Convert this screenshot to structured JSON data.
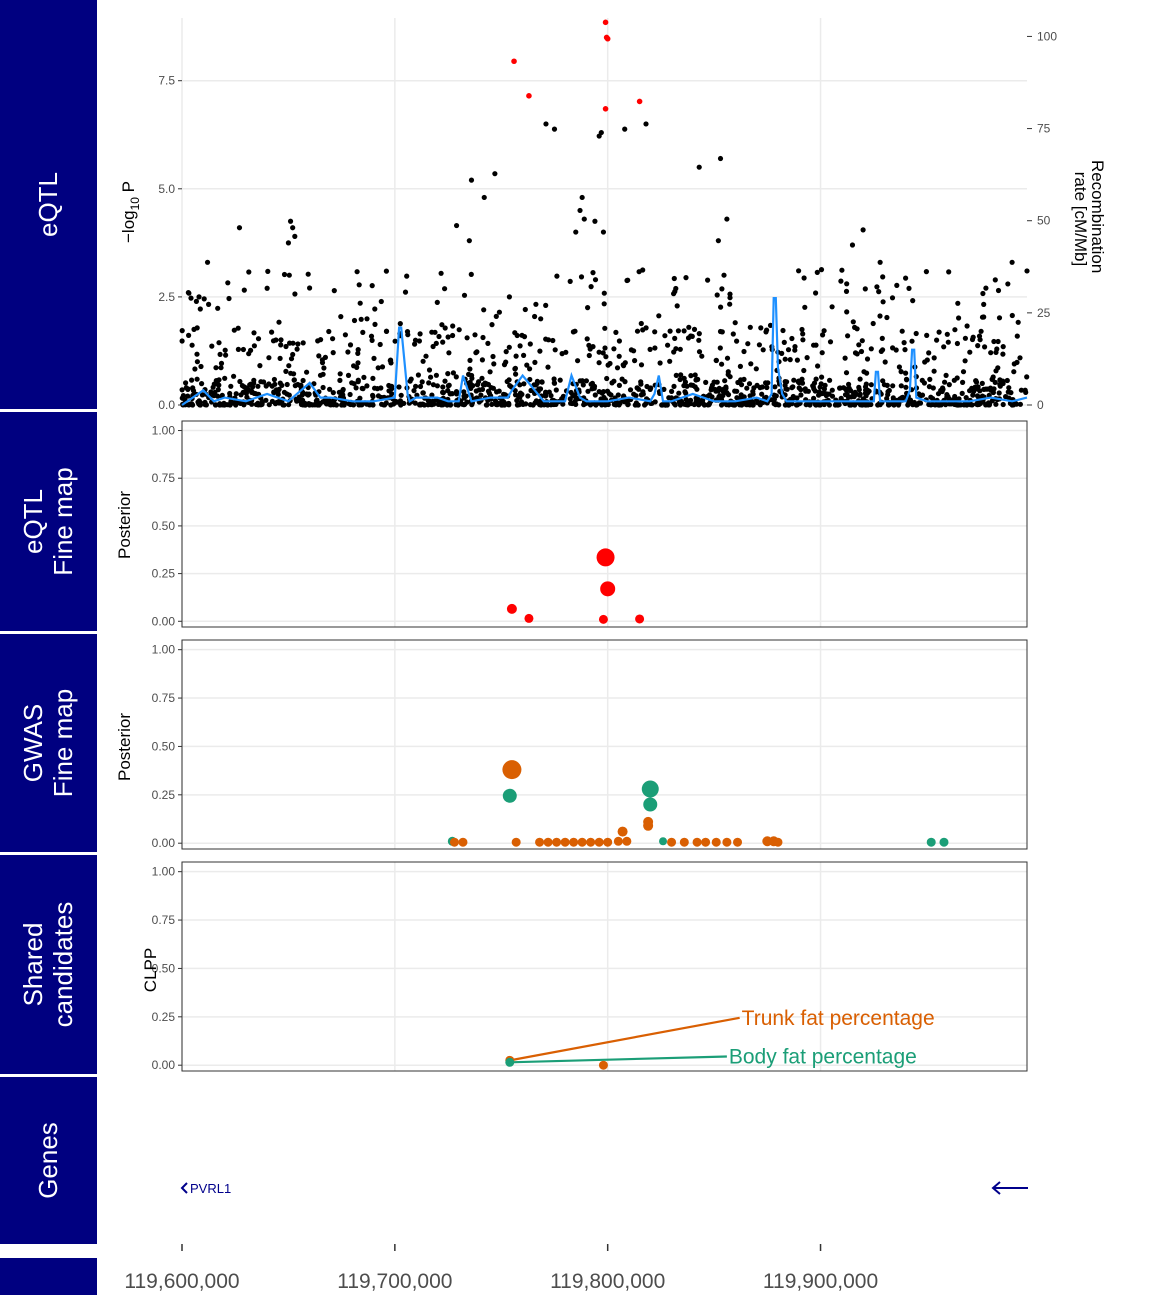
{
  "chart_data": [
    {
      "panel": "eqtl",
      "type": "scatter",
      "strip_label": [
        "eQTL"
      ],
      "ylabel": "−log10 P",
      "ylabel_parts": {
        "prefix": "−log",
        "sub": "10",
        "suffix": " P"
      },
      "y2label": [
        "Recombination",
        "rate [cM/Mb]"
      ],
      "xlim": [
        119600000,
        119997000
      ],
      "ylim": [
        0,
        8.95
      ],
      "yticks": [
        0.0,
        2.5,
        5.0,
        7.5
      ],
      "ytick_labels": [
        "0.0",
        "2.5",
        "5.0",
        "7.5"
      ],
      "y2lim": [
        0,
        105
      ],
      "y2ticks": [
        0,
        25,
        50,
        75,
        100
      ],
      "y2tick_labels": [
        "0",
        "25",
        "50",
        "75",
        "100"
      ],
      "grid": true,
      "colors": {
        "points": "#000000",
        "lead_points": "#ff0000",
        "recombination": "#1e90ff"
      },
      "lead_points": [
        {
          "x": 119799000,
          "y": 8.85
        },
        {
          "x": 119799500,
          "y": 8.5
        },
        {
          "x": 119800000,
          "y": 8.47
        },
        {
          "x": 119756000,
          "y": 7.95
        },
        {
          "x": 119763000,
          "y": 7.15
        },
        {
          "x": 119799000,
          "y": 6.85
        },
        {
          "x": 119815000,
          "y": 7.02
        }
      ],
      "labeled_points": [
        {
          "x": 119771000,
          "y": 6.5
        },
        {
          "x": 119775000,
          "y": 6.38
        },
        {
          "x": 119797000,
          "y": 6.3
        },
        {
          "x": 119796000,
          "y": 6.22
        },
        {
          "x": 119818000,
          "y": 6.5
        },
        {
          "x": 119808000,
          "y": 6.38
        },
        {
          "x": 119853000,
          "y": 5.7
        },
        {
          "x": 119843000,
          "y": 5.5
        },
        {
          "x": 119747000,
          "y": 5.35
        },
        {
          "x": 119736000,
          "y": 5.2
        },
        {
          "x": 119627000,
          "y": 4.1
        },
        {
          "x": 119651000,
          "y": 4.25
        },
        {
          "x": 119652000,
          "y": 4.1
        },
        {
          "x": 119653000,
          "y": 3.9
        },
        {
          "x": 119650000,
          "y": 3.75
        },
        {
          "x": 119788000,
          "y": 4.8
        },
        {
          "x": 119787000,
          "y": 4.5
        },
        {
          "x": 119789000,
          "y": 4.3
        },
        {
          "x": 119785000,
          "y": 4.0
        },
        {
          "x": 119794000,
          "y": 4.25
        },
        {
          "x": 119798000,
          "y": 4.0
        },
        {
          "x": 119856000,
          "y": 4.3
        },
        {
          "x": 119852000,
          "y": 3.8
        },
        {
          "x": 119920000,
          "y": 4.05
        },
        {
          "x": 119915000,
          "y": 3.7
        },
        {
          "x": 119928000,
          "y": 3.3
        },
        {
          "x": 119990000,
          "y": 3.3
        },
        {
          "x": 119988000,
          "y": 2.8
        },
        {
          "x": 119997000,
          "y": 3.1
        },
        {
          "x": 119742000,
          "y": 4.8
        },
        {
          "x": 119729000,
          "y": 4.15
        },
        {
          "x": 119735000,
          "y": 3.8
        },
        {
          "x": 119612000,
          "y": 3.3
        },
        {
          "x": 119603000,
          "y": 2.6
        },
        {
          "x": 119608000,
          "y": 2.5
        },
        {
          "x": 119640000,
          "y": 2.7
        }
      ],
      "series": [
        {
          "name": "",
          "kind": "recombination_rate",
          "x": [
            119600000,
            119610000,
            119615000,
            119620000,
            119630000,
            119640000,
            119650000,
            119660000,
            119665000,
            119670000,
            119680000,
            119690000,
            119700000,
            119702000,
            119703000,
            119706000,
            119707000,
            119710000,
            119720000,
            119725000,
            119730000,
            119732000,
            119736000,
            119745000,
            119753000,
            119755000,
            119760000,
            119770000,
            119780000,
            119783000,
            119787000,
            119790000,
            119800000,
            119810000,
            119820000,
            119822000,
            119824000,
            119826000,
            119830000,
            119840000,
            119850000,
            119860000,
            119870000,
            119875000,
            119877000,
            119878000,
            119879000,
            119880000,
            119882000,
            119884000,
            119900000,
            119920000,
            119925000,
            119926000,
            119927000,
            119928000,
            119940000,
            119942000,
            119943000,
            119944000,
            119945000,
            119950000,
            119960000,
            119970000,
            119980000,
            119990000,
            119997000
          ],
          "y": [
            0,
            4,
            1,
            2,
            1,
            3,
            1,
            6,
            2,
            2,
            1,
            1,
            2,
            21,
            21,
            3,
            1,
            2,
            2,
            1,
            1,
            8,
            1,
            2,
            2,
            4,
            8,
            1,
            1,
            8,
            2,
            1,
            1,
            2,
            1,
            3,
            8,
            1,
            1,
            3,
            1,
            1,
            2,
            1,
            3,
            29,
            29,
            10,
            3,
            1,
            1,
            1,
            1,
            9,
            9,
            1,
            1,
            4,
            15,
            15,
            2,
            1,
            1,
            1,
            2,
            1,
            2
          ]
        }
      ]
    },
    {
      "panel": "eqtl_finemap",
      "type": "scatter",
      "strip_label": [
        "eQTL",
        "Fine map"
      ],
      "ylabel": "Posterior",
      "xlim": [
        119600000,
        119997000
      ],
      "ylim": [
        -0.03,
        1.05
      ],
      "yticks": [
        0.0,
        0.25,
        0.5,
        0.75,
        1.0
      ],
      "ytick_labels": [
        "0.00",
        "0.25",
        "0.50",
        "0.75",
        "1.00"
      ],
      "grid": true,
      "series": [
        {
          "name": "",
          "color": "#ff0000",
          "points": [
            {
              "x": 119799000,
              "y": 0.335,
              "size": 9
            },
            {
              "x": 119800000,
              "y": 0.17,
              "size": 7.5
            },
            {
              "x": 119755000,
              "y": 0.065,
              "size": 5
            },
            {
              "x": 119763000,
              "y": 0.015,
              "size": 4.5
            },
            {
              "x": 119798000,
              "y": 0.01,
              "size": 4.5
            },
            {
              "x": 119815000,
              "y": 0.012,
              "size": 4.5
            }
          ]
        }
      ]
    },
    {
      "panel": "gwas_finemap",
      "type": "scatter",
      "strip_label": [
        "GWAS",
        "Fine map"
      ],
      "ylabel": "Posterior",
      "xlim": [
        119600000,
        119997000
      ],
      "ylim": [
        -0.03,
        1.05
      ],
      "yticks": [
        0.0,
        0.25,
        0.5,
        0.75,
        1.0
      ],
      "ytick_labels": [
        "0.00",
        "0.25",
        "0.50",
        "0.75",
        "1.00"
      ],
      "grid": true,
      "series": [
        {
          "name": "Body fat percentage",
          "color": "#1b9e77",
          "points": [
            {
              "x": 119820000,
              "y": 0.28,
              "size": 8.5
            },
            {
              "x": 119820000,
              "y": 0.2,
              "size": 7
            },
            {
              "x": 119754000,
              "y": 0.245,
              "size": 7
            },
            {
              "x": 119727000,
              "y": 0.01,
              "size": 4.5
            },
            {
              "x": 119952000,
              "y": 0.005,
              "size": 4.5
            },
            {
              "x": 119958000,
              "y": 0.005,
              "size": 4.5
            },
            {
              "x": 119826000,
              "y": 0.01,
              "size": 4
            }
          ]
        },
        {
          "name": "Trunk fat percentage",
          "color": "#d95f02",
          "points": [
            {
              "x": 119755000,
              "y": 0.38,
              "size": 9.5
            },
            {
              "x": 119819000,
              "y": 0.11,
              "size": 5
            },
            {
              "x": 119819000,
              "y": 0.09,
              "size": 5
            },
            {
              "x": 119807000,
              "y": 0.06,
              "size": 5
            },
            {
              "x": 119728000,
              "y": 0.005,
              "size": 4.5
            },
            {
              "x": 119732000,
              "y": 0.005,
              "size": 4.5
            },
            {
              "x": 119757000,
              "y": 0.005,
              "size": 4.5
            },
            {
              "x": 119768000,
              "y": 0.005,
              "size": 4.5
            },
            {
              "x": 119772000,
              "y": 0.005,
              "size": 4.5
            },
            {
              "x": 119776000,
              "y": 0.005,
              "size": 4.5
            },
            {
              "x": 119780000,
              "y": 0.005,
              "size": 4.5
            },
            {
              "x": 119784000,
              "y": 0.005,
              "size": 4.5
            },
            {
              "x": 119788000,
              "y": 0.005,
              "size": 4.5
            },
            {
              "x": 119792000,
              "y": 0.005,
              "size": 4.5
            },
            {
              "x": 119796000,
              "y": 0.005,
              "size": 4.5
            },
            {
              "x": 119800000,
              "y": 0.005,
              "size": 4.5
            },
            {
              "x": 119805000,
              "y": 0.01,
              "size": 4.5
            },
            {
              "x": 119809000,
              "y": 0.01,
              "size": 4.5
            },
            {
              "x": 119830000,
              "y": 0.005,
              "size": 4.5
            },
            {
              "x": 119836000,
              "y": 0.005,
              "size": 4.5
            },
            {
              "x": 119842000,
              "y": 0.005,
              "size": 4.5
            },
            {
              "x": 119846000,
              "y": 0.005,
              "size": 4.5
            },
            {
              "x": 119851000,
              "y": 0.005,
              "size": 4.5
            },
            {
              "x": 119856000,
              "y": 0.005,
              "size": 4.5
            },
            {
              "x": 119861000,
              "y": 0.005,
              "size": 4.5
            },
            {
              "x": 119875000,
              "y": 0.01,
              "size": 5
            },
            {
              "x": 119878000,
              "y": 0.01,
              "size": 5
            },
            {
              "x": 119880000,
              "y": 0.005,
              "size": 4.5
            }
          ]
        }
      ]
    },
    {
      "panel": "shared_candidates",
      "type": "scatter",
      "strip_label": [
        "Shared",
        "candidates"
      ],
      "ylabel": "CLPP",
      "xlim": [
        119600000,
        119997000
      ],
      "ylim": [
        -0.03,
        1.05
      ],
      "yticks": [
        0.0,
        0.25,
        0.5,
        0.75,
        1.0
      ],
      "ytick_labels": [
        "0.00",
        "0.25",
        "0.50",
        "0.75",
        "1.00"
      ],
      "grid": true,
      "series": [
        {
          "name": "Trunk fat percentage",
          "color": "#d95f02",
          "points": [
            {
              "x": 119754000,
              "y": 0.025
            },
            {
              "x": 119798000,
              "y": 0.0
            }
          ]
        },
        {
          "name": "Body fat percentage",
          "color": "#1b9e77",
          "points": [
            {
              "x": 119754000,
              "y": 0.015
            }
          ]
        }
      ],
      "annotations": [
        {
          "text": "Trunk fat percentage",
          "color": "#d95f02",
          "from_x": 119754000,
          "from_y": 0.025,
          "to_x": 119862000,
          "to_y": 0.245
        },
        {
          "text": "Body fat percentage",
          "color": "#1b9e77",
          "from_x": 119754000,
          "from_y": 0.015,
          "to_x": 119856000,
          "to_y": 0.045
        }
      ]
    },
    {
      "panel": "genes",
      "type": "gene_track",
      "strip_label": [
        "Genes"
      ],
      "genes": [
        {
          "name": "PVRL1",
          "strand": "-",
          "color": "#00008b"
        }
      ]
    }
  ],
  "x_axis": {
    "ticks": [
      119600000,
      119700000,
      119800000,
      119900000
    ],
    "tick_labels": [
      "119,600,000",
      "119,700,000",
      "119,800,000",
      "119,900,000"
    ]
  },
  "colors": {
    "strip_bg": "#000080",
    "grid": "#ebebeb",
    "text": "#4d4d4d"
  }
}
